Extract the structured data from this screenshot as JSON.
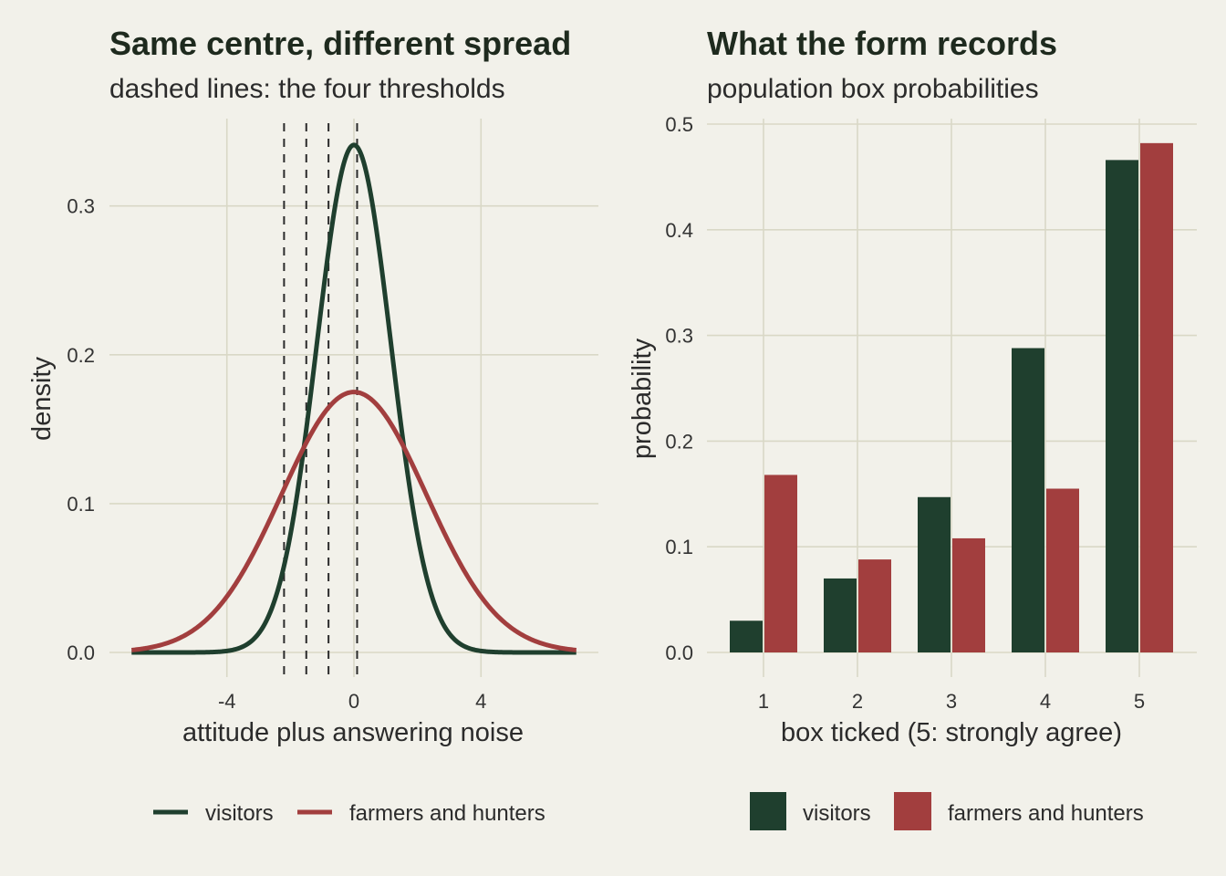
{
  "colors": {
    "background": "#f2f1ea",
    "visitors": "#1f3f2e",
    "farmers_and_hunters": "#a23e3e",
    "grid": "#d9d8c6",
    "threshold": "#2b2b2b"
  },
  "chart_data": [
    {
      "type": "line",
      "title": "Same centre, different spread",
      "subtitle": "dashed lines: the four thresholds",
      "xlabel": "attitude plus answering noise",
      "ylabel": "density",
      "xlim": [
        -7,
        7
      ],
      "ylim": [
        0,
        0.35
      ],
      "xticks": [
        -4,
        0,
        4
      ],
      "xtick_labels": [
        "-4",
        "0",
        "4"
      ],
      "yticks": [
        0,
        0.1,
        0.2,
        0.3
      ],
      "ytick_labels": [
        "0.0",
        "0.1",
        "0.2",
        "0.3"
      ],
      "thresholds": [
        -2.2,
        -1.5,
        -0.8,
        0.1
      ],
      "grid": true,
      "legend_position": "bottom",
      "series": [
        {
          "name": "visitors",
          "distribution": "normal",
          "mean": 0,
          "sd": 1.17
        },
        {
          "name": "farmers and hunters",
          "distribution": "normal",
          "mean": 0,
          "sd": 2.28
        }
      ]
    },
    {
      "type": "bar",
      "title": "What the form records",
      "subtitle": "population box probabilities",
      "xlabel": "box ticked (5: strongly agree)",
      "ylabel": "probability",
      "categories": [
        "1",
        "2",
        "3",
        "4",
        "5"
      ],
      "ylim": [
        0,
        0.5
      ],
      "yticks": [
        0,
        0.1,
        0.2,
        0.3,
        0.4,
        0.5
      ],
      "ytick_labels": [
        "0.0",
        "0.1",
        "0.2",
        "0.3",
        "0.4",
        "0.5"
      ],
      "grid": true,
      "legend_position": "bottom",
      "series": [
        {
          "name": "visitors",
          "values": [
            0.03,
            0.07,
            0.147,
            0.288,
            0.466
          ]
        },
        {
          "name": "farmers and hunters",
          "values": [
            0.168,
            0.088,
            0.108,
            0.155,
            0.482
          ]
        }
      ]
    }
  ]
}
